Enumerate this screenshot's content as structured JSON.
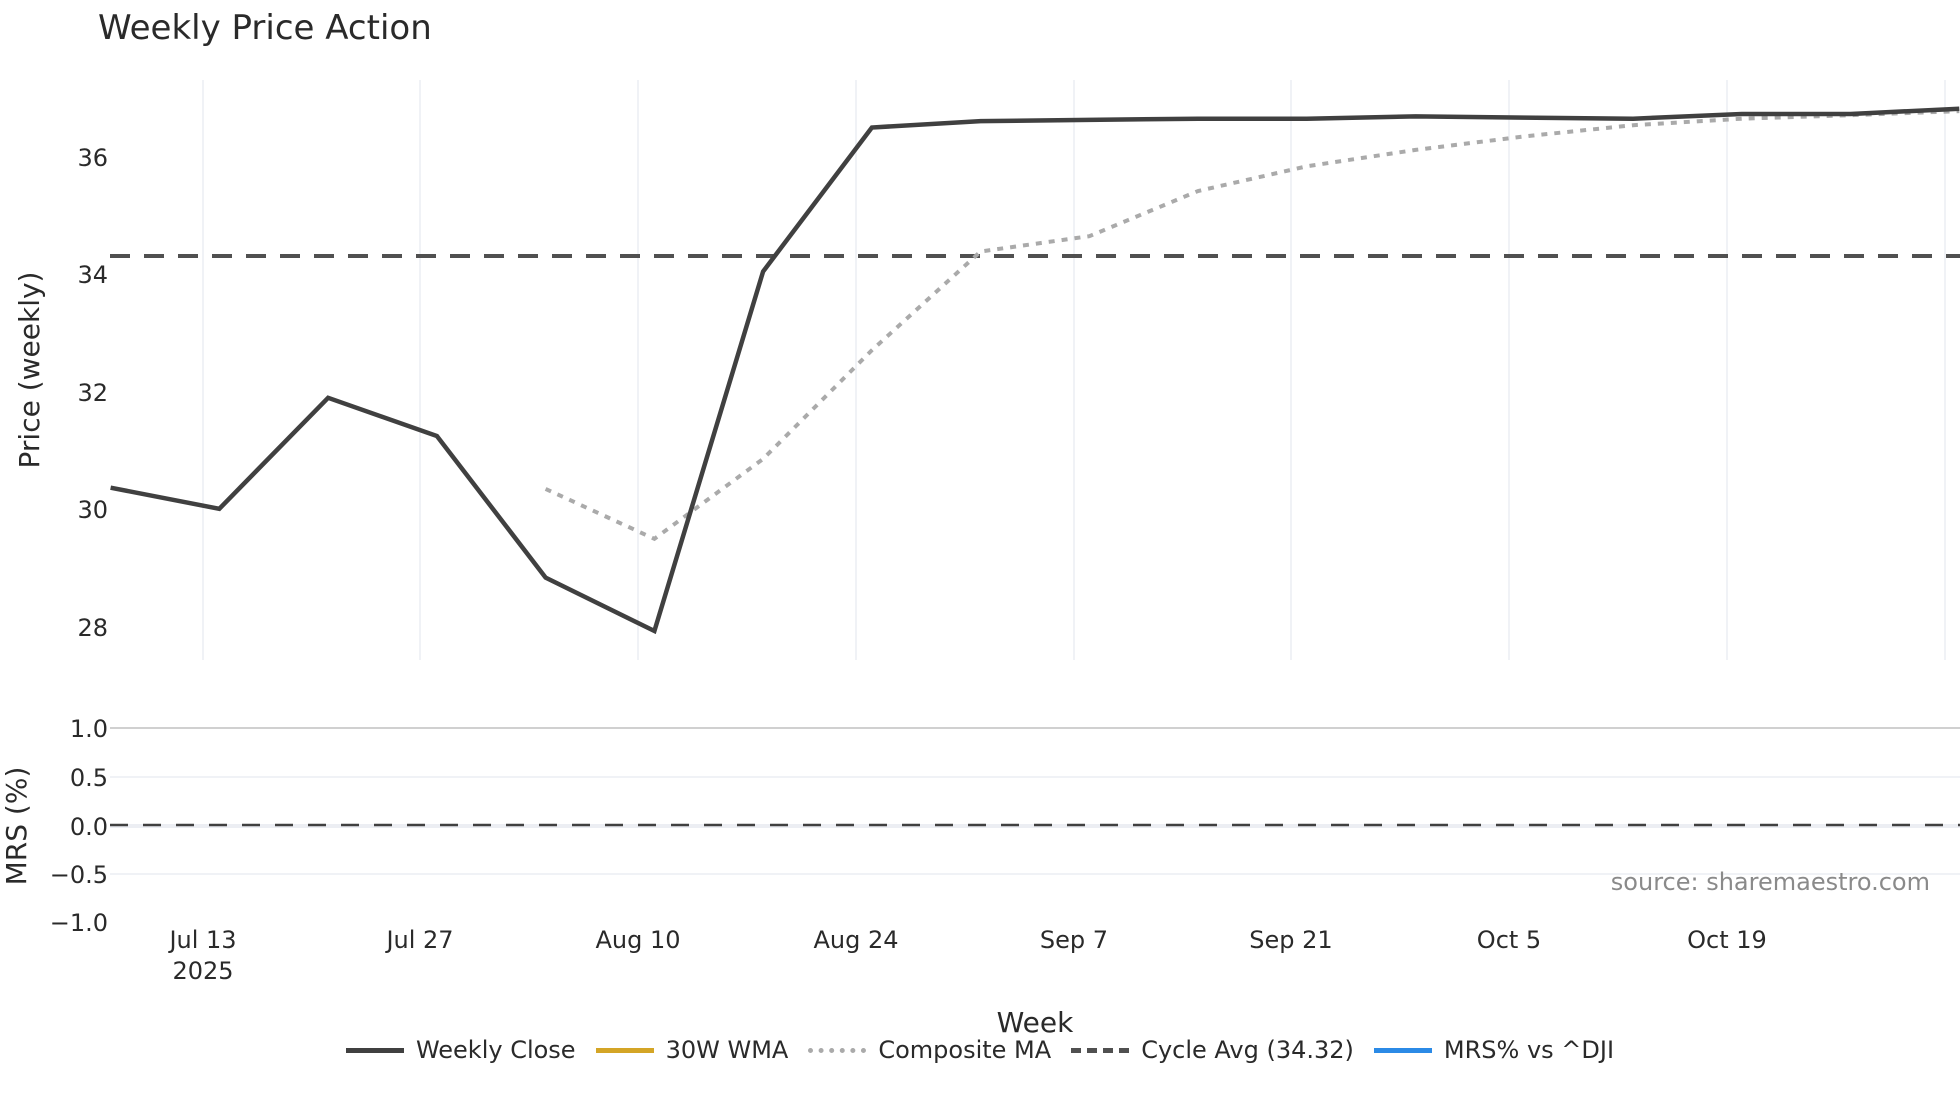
{
  "title": "Weekly Price Action",
  "x_axis_title": "Week",
  "source": "source: sharemaestro.com",
  "legend": [
    {
      "label": "Weekly Close",
      "color": "#404040",
      "style": "solid"
    },
    {
      "label": "30W WMA",
      "color": "#d4a526",
      "style": "solid"
    },
    {
      "label": "Composite MA",
      "color": "#aaaaaa",
      "style": "dotted"
    },
    {
      "label": "Cycle Avg (34.32)",
      "color": "#505050",
      "style": "dashed"
    },
    {
      "label": "MRS% vs ^DJI",
      "color": "#2b8ae6",
      "style": "solid"
    }
  ],
  "chart_data": [
    {
      "type": "line",
      "title": "Weekly Price Action",
      "xlabel": "Week",
      "ylabel": "Price (weekly)",
      "ylim": [
        27.5,
        37.3
      ],
      "yticks": [
        28,
        30,
        32,
        34,
        36
      ],
      "xticks": [
        "Jul 13\n2025",
        "Jul 27",
        "Aug 10",
        "Aug 24",
        "Sep 7",
        "Sep 21",
        "Oct 5",
        "Oct 19"
      ],
      "grid": true,
      "x": [
        "2025-07-07",
        "2025-07-14",
        "2025-07-21",
        "2025-07-28",
        "2025-08-04",
        "2025-08-11",
        "2025-08-18",
        "2025-08-25",
        "2025-09-01",
        "2025-09-08",
        "2025-09-15",
        "2025-09-22",
        "2025-09-29",
        "2025-10-06",
        "2025-10-13",
        "2025-10-20",
        "2025-10-27",
        "2025-11-03"
      ],
      "series": [
        {
          "name": "Weekly Close",
          "values": [
            30.38,
            30.02,
            31.91,
            31.26,
            28.85,
            27.94,
            34.06,
            36.51,
            36.62,
            36.64,
            36.66,
            36.66,
            36.7,
            36.68,
            36.66,
            36.74,
            36.74,
            36.83
          ]
        },
        {
          "name": "Composite MA",
          "values": [
            null,
            null,
            null,
            null,
            30.36,
            29.51,
            30.87,
            32.72,
            34.4,
            34.66,
            35.43,
            35.85,
            36.13,
            36.36,
            36.55,
            36.66,
            36.72,
            36.79
          ]
        },
        {
          "name": "30W WMA",
          "values": []
        },
        {
          "name": "Cycle Avg (34.32)",
          "values": [
            34.32
          ]
        }
      ],
      "legend_position": "bottom"
    },
    {
      "type": "line",
      "ylabel": "MRS (%)",
      "ylim": [
        -1.0,
        1.0
      ],
      "yticks": [
        "1.0",
        "0.5",
        "0.0",
        "−0.5",
        "−1.0"
      ],
      "series": [
        {
          "name": "MRS% vs ^DJI",
          "values": []
        },
        {
          "name": "Zero line",
          "values": [
            0.0
          ]
        }
      ]
    }
  ],
  "axes": {
    "price_ylabel": "Price (weekly)",
    "price_yticks": [
      "36",
      "34",
      "32",
      "30",
      "28"
    ],
    "mrs_ylabel": "MRS (%)",
    "mrs_yticks": [
      "1.0",
      "0.5",
      "0.0",
      "−0.5",
      "−1.0"
    ],
    "xticks": [
      "Jul 13",
      "Jul 27",
      "Aug 10",
      "Aug 24",
      "Sep 7",
      "Sep 21",
      "Oct 5",
      "Oct 19"
    ],
    "xtick_year": "2025"
  }
}
